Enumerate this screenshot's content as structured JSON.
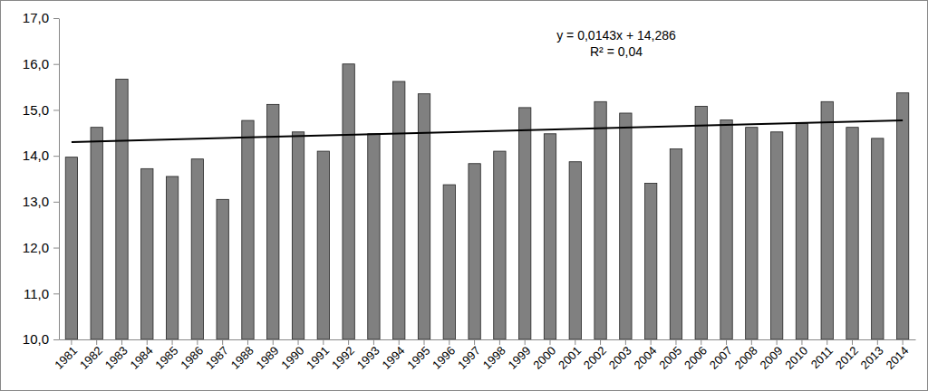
{
  "chart_data": {
    "type": "bar",
    "categories": [
      "1981",
      "1982",
      "1983",
      "1984",
      "1985",
      "1986",
      "1987",
      "1988",
      "1989",
      "1990",
      "1991",
      "1992",
      "1993",
      "1994",
      "1995",
      "1996",
      "1997",
      "1998",
      "1999",
      "2000",
      "2001",
      "2002",
      "2003",
      "2004",
      "2005",
      "2006",
      "2007",
      "2008",
      "2009",
      "2010",
      "2011",
      "2012",
      "2013",
      "2014"
    ],
    "values": [
      13.97,
      14.62,
      15.67,
      13.72,
      13.55,
      13.93,
      13.05,
      14.77,
      15.12,
      14.52,
      14.1,
      16.0,
      14.48,
      15.62,
      15.35,
      13.37,
      13.83,
      14.1,
      15.05,
      14.48,
      13.87,
      15.18,
      14.93,
      13.4,
      14.15,
      15.08,
      14.78,
      14.62,
      14.52,
      14.7,
      15.18,
      14.62,
      14.38,
      15.37
    ],
    "color": "#808080",
    "ylim": [
      10,
      17
    ],
    "yticks": [
      {
        "value": 10,
        "label": "10,0"
      },
      {
        "value": 11,
        "label": "11,0"
      },
      {
        "value": 12,
        "label": "12,0"
      },
      {
        "value": 13,
        "label": "13,0"
      },
      {
        "value": 14,
        "label": "14,0"
      },
      {
        "value": 15,
        "label": "15,0"
      },
      {
        "value": 16,
        "label": "16,0"
      },
      {
        "value": 17,
        "label": "17,0"
      }
    ],
    "grid": false,
    "trendline": {
      "slope": 0.0143,
      "intercept": 14.286
    },
    "annotations": [
      "y = 0,0143x + 14,286",
      "R² = 0,04"
    ]
  }
}
